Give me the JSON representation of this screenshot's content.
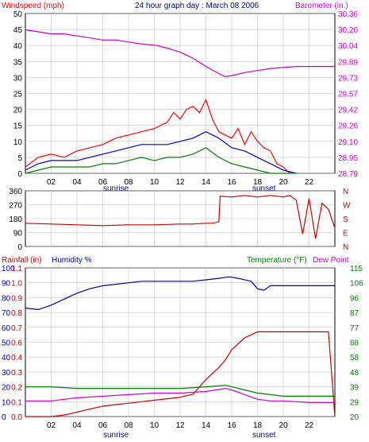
{
  "colors": {
    "wind": "#ff0000",
    "gust": "#ff0000",
    "wind_avg": "#0000cc",
    "wind_low": "#008000",
    "barometer": "#cc00cc",
    "direction": "#cc0000",
    "rain": "#cc0000",
    "humidity": "#0000aa",
    "temperature": "#008000",
    "dew_point": "#cc00cc",
    "grid": "#c0c0c0",
    "frame": "#000000"
  },
  "chart_data": [
    {
      "type": "line",
      "title": "24 hour graph day : March 08 2006",
      "ylabel_left": "Windspeed (mph)",
      "ylabel_right": "Barometer (in.)",
      "ylim_left": [
        0,
        50
      ],
      "yticks_left": [
        "0",
        "5",
        "10",
        "15",
        "20",
        "25",
        "30",
        "35",
        "40",
        "45",
        "50"
      ],
      "ylim_right": [
        28.79,
        30.36
      ],
      "yticks_right": [
        "28.79",
        "28.95",
        "29.10",
        "29.26",
        "29.42",
        "29.57",
        "29.73",
        "29.89",
        "30.04",
        "30.20",
        "30.36"
      ],
      "xticks": [
        "02",
        "04",
        "06",
        "08",
        "10",
        "12",
        "14",
        "16",
        "18",
        "20",
        "22"
      ],
      "xlim_hours": [
        0,
        24
      ],
      "grid": true,
      "annotations": [
        {
          "text": "sunrise",
          "hour": 6.5
        },
        {
          "text": "sunset",
          "hour": 18.1
        }
      ],
      "series": [
        {
          "key": "gust",
          "axis": "left",
          "x": [
            0,
            1,
            2,
            3,
            4,
            5,
            6,
            7,
            8,
            9,
            10,
            11,
            11.5,
            12,
            12.5,
            13,
            13.5,
            14,
            14.5,
            15,
            15.5,
            16,
            16.5,
            17,
            17.5,
            18,
            18.5,
            19,
            19.5,
            20,
            20.5
          ],
          "y": [
            2,
            5,
            6,
            5,
            7,
            8,
            9,
            11,
            12,
            13,
            14,
            16,
            19,
            17,
            20,
            21,
            19,
            23,
            17,
            13,
            12,
            11,
            14,
            9,
            13,
            10,
            8,
            7,
            3,
            2,
            0
          ]
        },
        {
          "key": "wind_avg",
          "axis": "left",
          "x": [
            0,
            1,
            2,
            3,
            4,
            5,
            6,
            7,
            8,
            9,
            10,
            11,
            12,
            13,
            14,
            15,
            16,
            17,
            18,
            19,
            20,
            21
          ],
          "y": [
            1,
            3,
            4,
            4,
            4,
            5,
            6,
            7,
            8,
            9,
            9,
            9,
            10,
            11,
            13,
            11,
            8,
            7,
            5,
            3,
            1,
            0
          ]
        },
        {
          "key": "wind_low",
          "axis": "left",
          "x": [
            0,
            1,
            2,
            3,
            4,
            5,
            6,
            7,
            8,
            9,
            10,
            11,
            12,
            13,
            14,
            15,
            16,
            17,
            18,
            19,
            20,
            21
          ],
          "y": [
            0,
            1,
            2,
            2,
            2,
            2,
            3,
            3,
            4,
            5,
            4,
            5,
            5,
            6,
            8,
            5,
            3,
            2,
            1,
            0,
            0,
            0
          ]
        },
        {
          "key": "barometer",
          "axis": "right",
          "x": [
            0,
            1,
            2,
            3,
            4,
            5,
            6,
            7,
            8,
            9,
            10,
            11,
            12,
            13,
            14,
            15,
            15.5,
            16,
            17,
            18,
            19,
            20,
            21,
            22,
            23,
            24
          ],
          "y": [
            30.2,
            30.18,
            30.16,
            30.16,
            30.14,
            30.12,
            30.1,
            30.1,
            30.08,
            30.06,
            30.05,
            30.02,
            29.98,
            29.92,
            29.84,
            29.77,
            29.74,
            29.75,
            29.78,
            29.8,
            29.82,
            29.83,
            29.84,
            29.84,
            29.84,
            29.84
          ]
        }
      ]
    },
    {
      "type": "scatter",
      "ylim": [
        0,
        360
      ],
      "yticks": [
        "0",
        "90",
        "180",
        "270",
        "360"
      ],
      "right_labels": [
        "N",
        "W",
        "S",
        "E",
        "N"
      ],
      "grid": true,
      "series": [
        {
          "key": "direction",
          "x": [
            0,
            2,
            4,
            6,
            8,
            10,
            12,
            13,
            14,
            14.5,
            15,
            15.1,
            16,
            17,
            18,
            19,
            20,
            20.5,
            21,
            21.5,
            22,
            22.5,
            23,
            23.5,
            24
          ],
          "y": [
            150,
            145,
            140,
            135,
            140,
            140,
            145,
            145,
            150,
            150,
            160,
            325,
            320,
            330,
            320,
            330,
            320,
            330,
            300,
            80,
            310,
            50,
            280,
            240,
            120
          ]
        }
      ]
    },
    {
      "type": "line",
      "ylabel_left": "Rainfall (in)",
      "ylabel_left2": "Humidity %",
      "ylabel_right": "Temperature (°F)",
      "ylabel_right2": "Dew Point",
      "yticks_humidity": [
        "0",
        "10",
        "20",
        "30",
        "40",
        "50",
        "60",
        "70",
        "80",
        "90",
        "100"
      ],
      "yticks_rain": [
        "0.0",
        "0.1",
        "0.2",
        "0.3",
        "0.4",
        "0.6",
        "0.7",
        "0.8",
        "0.9",
        "1.0",
        "1.1"
      ],
      "yticks_temp": [
        "20",
        "29",
        "39",
        "48",
        "58",
        "68",
        "77",
        "87",
        "96",
        "106",
        "115"
      ],
      "ylim_humidity": [
        0,
        100
      ],
      "ylim_temp": [
        20,
        115
      ],
      "grid": true,
      "annotations": [
        {
          "text": "sunrise",
          "hour": 6.5
        },
        {
          "text": "sunset",
          "hour": 18.1
        }
      ],
      "series": [
        {
          "key": "humidity",
          "x": [
            0,
            1,
            2,
            3,
            4,
            5,
            6,
            7,
            8,
            9,
            10,
            11,
            12,
            13,
            14,
            15,
            15.8,
            16.5,
            17.5,
            18,
            18.5,
            19,
            20,
            21,
            22,
            23,
            24
          ],
          "y": [
            73,
            72,
            75,
            79,
            83,
            86,
            88,
            89,
            90,
            91,
            91,
            91,
            91,
            91,
            92,
            93,
            94,
            93,
            91,
            86,
            85,
            88,
            88,
            88,
            88,
            88,
            88
          ]
        },
        {
          "key": "rain",
          "x": [
            0,
            2,
            3,
            4,
            5,
            6,
            7,
            8,
            9,
            10,
            11,
            12,
            13,
            13.5,
            14,
            14.5,
            15,
            15.5,
            16,
            17,
            18,
            23.5,
            24
          ],
          "y": [
            0,
            0,
            1,
            3,
            5,
            7,
            8,
            9,
            10,
            11,
            12,
            13,
            15,
            20,
            25,
            29,
            33,
            38,
            45,
            53,
            57,
            57,
            0
          ]
        },
        {
          "key": "temperature",
          "x": [
            0,
            2,
            4,
            6,
            8,
            10,
            12,
            14,
            15.5,
            16,
            17,
            18,
            19,
            20,
            22,
            24
          ],
          "y": [
            39,
            39,
            38,
            38,
            38,
            38,
            38,
            39,
            40,
            39,
            37,
            35,
            34,
            33,
            33,
            33
          ]
        },
        {
          "key": "dew_point",
          "x": [
            0,
            2,
            4,
            6,
            8,
            10,
            12,
            14,
            15.5,
            16,
            17,
            18,
            19,
            20,
            22,
            24
          ],
          "y": [
            30,
            30,
            32,
            33,
            34,
            35,
            35,
            36,
            38,
            37,
            34,
            31,
            30,
            30,
            29,
            29
          ]
        }
      ]
    }
  ]
}
